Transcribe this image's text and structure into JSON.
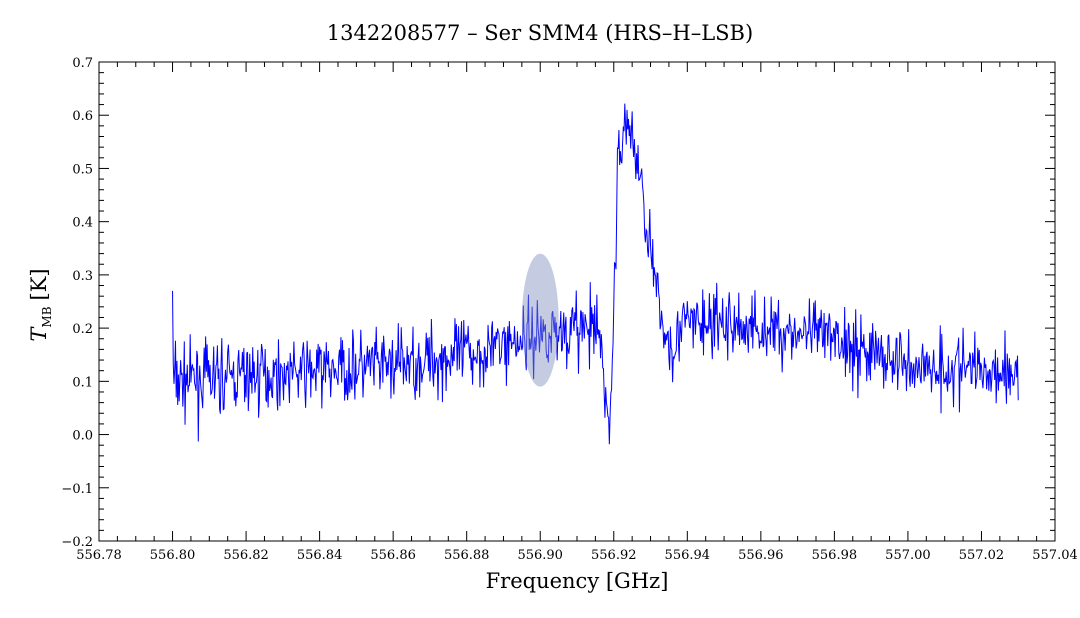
{
  "chart_data": {
    "type": "line",
    "title": "1342208577 – Ser SMM4 (HRS–H–LSB)",
    "xlabel": "Frequency [GHz]",
    "ylabel_main": "T",
    "ylabel_sub": "MB",
    "ylabel_unit": "[K]",
    "xlim": [
      556.78,
      557.04
    ],
    "ylim": [
      -0.2,
      0.7
    ],
    "xticks": [
      556.78,
      556.8,
      556.82,
      556.84,
      556.86,
      556.88,
      556.9,
      556.92,
      556.94,
      556.96,
      556.98,
      557.0,
      557.02,
      557.04
    ],
    "xtick_labels": [
      "556.78",
      "556.80",
      "556.82",
      "556.84",
      "556.86",
      "556.88",
      "556.90",
      "556.92",
      "556.94",
      "556.96",
      "556.98",
      "557.00",
      "557.02",
      "557.04"
    ],
    "yticks": [
      -0.2,
      -0.1,
      0.0,
      0.1,
      0.2,
      0.3,
      0.4,
      0.5,
      0.6,
      0.7
    ],
    "ytick_labels": [
      "−0.2",
      "−0.1",
      "0.0",
      "0.1",
      "0.2",
      "0.3",
      "0.4",
      "0.5",
      "0.6",
      "0.7"
    ],
    "grid": false,
    "series_color": "#0000ff",
    "highlight": {
      "center_x": 556.9,
      "center_y": 0.215,
      "half_width_x": 0.005,
      "half_height_y": 0.125,
      "color": "#7f8fbf"
    },
    "series": [
      {
        "x_start": 556.8,
        "x_end": 557.03,
        "envelope_x": [
          556.8,
          556.82,
          556.84,
          556.86,
          556.88,
          556.9,
          556.91,
          556.916,
          556.919,
          556.921,
          556.923,
          556.926,
          556.929,
          556.932,
          556.935,
          556.94,
          556.96,
          556.98,
          557.0,
          557.03
        ],
        "envelope_y": [
          0.1,
          0.11,
          0.12,
          0.13,
          0.15,
          0.19,
          0.2,
          0.19,
          0.0,
          0.48,
          0.6,
          0.53,
          0.4,
          0.24,
          0.17,
          0.21,
          0.2,
          0.18,
          0.13,
          0.12
        ],
        "noise_rms": 0.055
      }
    ]
  }
}
